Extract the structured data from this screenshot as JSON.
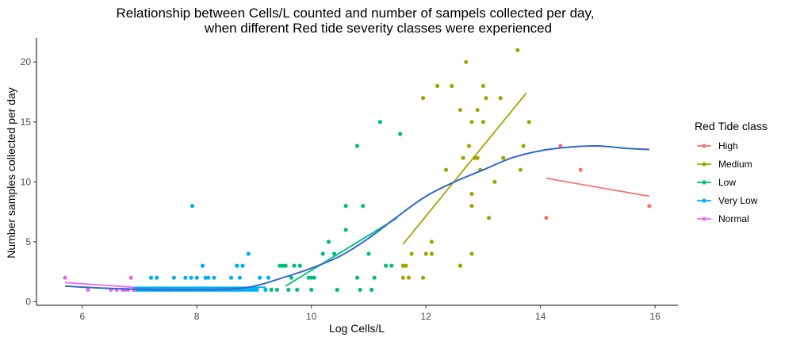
{
  "chart_data": {
    "type": "scatter",
    "title_line1": "Relationship between Cells/L counted and number of sampels collected per day,",
    "title_line2": "when different Red tide severity classes were experienced",
    "xlabel": "Log Cells/L",
    "ylabel": "Number samples collected per day",
    "xlim": [
      5.2,
      16.4
    ],
    "ylim": [
      -0.3,
      22
    ],
    "x_ticks": [
      6,
      8,
      10,
      12,
      14,
      16
    ],
    "y_ticks": [
      0,
      5,
      10,
      15,
      20
    ],
    "grid": false,
    "legend": {
      "title": "Red Tide class",
      "placement": "right"
    },
    "series": [
      {
        "name": "High",
        "color": "#F8766D",
        "points": [
          [
            14.1,
            7
          ],
          [
            14.35,
            13
          ],
          [
            14.7,
            11
          ],
          [
            15.9,
            8
          ]
        ],
        "fit": [
          [
            14.1,
            10.3
          ],
          [
            15.9,
            8.8
          ]
        ]
      },
      {
        "name": "Medium",
        "color": "#A3A500",
        "points": [
          [
            11.6,
            2
          ],
          [
            11.6,
            3
          ],
          [
            11.65,
            3
          ],
          [
            11.7,
            2
          ],
          [
            11.75,
            4
          ],
          [
            11.95,
            2
          ],
          [
            11.95,
            17
          ],
          [
            12.0,
            4
          ],
          [
            12.1,
            4
          ],
          [
            12.1,
            5
          ],
          [
            12.2,
            18
          ],
          [
            12.35,
            11
          ],
          [
            12.45,
            18
          ],
          [
            12.6,
            3
          ],
          [
            12.6,
            16
          ],
          [
            12.65,
            12
          ],
          [
            12.7,
            20
          ],
          [
            12.75,
            13
          ],
          [
            12.8,
            4
          ],
          [
            12.8,
            8
          ],
          [
            12.8,
            15
          ],
          [
            12.8,
            9
          ],
          [
            12.85,
            12
          ],
          [
            12.9,
            12
          ],
          [
            12.9,
            16
          ],
          [
            12.95,
            11
          ],
          [
            13.0,
            18
          ],
          [
            13.0,
            15
          ],
          [
            13.05,
            17
          ],
          [
            13.1,
            7
          ],
          [
            13.2,
            10
          ],
          [
            13.3,
            17
          ],
          [
            13.35,
            12
          ],
          [
            13.6,
            21
          ],
          [
            13.65,
            11
          ],
          [
            13.7,
            13
          ],
          [
            13.8,
            15
          ]
        ],
        "fit": [
          [
            11.6,
            4.8
          ],
          [
            13.75,
            17.4
          ]
        ]
      },
      {
        "name": "Low",
        "color": "#00BF7D",
        "points": [
          [
            9.3,
            1
          ],
          [
            9.4,
            1
          ],
          [
            9.45,
            3
          ],
          [
            9.5,
            3
          ],
          [
            9.55,
            3
          ],
          [
            9.6,
            1
          ],
          [
            9.65,
            2
          ],
          [
            9.7,
            3
          ],
          [
            9.75,
            1
          ],
          [
            9.8,
            3
          ],
          [
            9.95,
            2
          ],
          [
            10.0,
            1
          ],
          [
            10.0,
            2
          ],
          [
            10.05,
            2
          ],
          [
            10.2,
            4
          ],
          [
            10.3,
            5
          ],
          [
            10.4,
            4
          ],
          [
            10.45,
            1
          ],
          [
            10.6,
            8
          ],
          [
            10.6,
            6
          ],
          [
            10.8,
            2
          ],
          [
            10.8,
            13
          ],
          [
            10.85,
            1
          ],
          [
            10.9,
            8
          ],
          [
            11.0,
            4
          ],
          [
            11.05,
            1
          ],
          [
            11.1,
            2
          ],
          [
            11.2,
            15
          ],
          [
            11.3,
            3
          ],
          [
            11.4,
            3
          ],
          [
            11.55,
            14
          ]
        ],
        "fit": [
          [
            9.55,
            1.3
          ],
          [
            11.5,
            7.0
          ]
        ]
      },
      {
        "name": "Very Low",
        "color": "#00B0F6",
        "points": [
          [
            6.9,
            1
          ],
          [
            6.95,
            1
          ],
          [
            7.0,
            1
          ],
          [
            7.05,
            1
          ],
          [
            7.1,
            1
          ],
          [
            7.15,
            1
          ],
          [
            7.2,
            1
          ],
          [
            7.2,
            2
          ],
          [
            7.25,
            1
          ],
          [
            7.3,
            1
          ],
          [
            7.3,
            2
          ],
          [
            7.35,
            1
          ],
          [
            7.4,
            1
          ],
          [
            7.45,
            1
          ],
          [
            7.5,
            1
          ],
          [
            7.55,
            1
          ],
          [
            7.6,
            1
          ],
          [
            7.6,
            2
          ],
          [
            7.65,
            1
          ],
          [
            7.7,
            1
          ],
          [
            7.75,
            1
          ],
          [
            7.8,
            1
          ],
          [
            7.8,
            2
          ],
          [
            7.85,
            1
          ],
          [
            7.9,
            1
          ],
          [
            7.9,
            2
          ],
          [
            7.92,
            8
          ],
          [
            7.95,
            1
          ],
          [
            8.0,
            1
          ],
          [
            8.0,
            2
          ],
          [
            8.05,
            1
          ],
          [
            8.1,
            1
          ],
          [
            8.1,
            3
          ],
          [
            8.15,
            1
          ],
          [
            8.15,
            2
          ],
          [
            8.2,
            1
          ],
          [
            8.2,
            2
          ],
          [
            8.25,
            1
          ],
          [
            8.3,
            1
          ],
          [
            8.3,
            2
          ],
          [
            8.35,
            1
          ],
          [
            8.4,
            1
          ],
          [
            8.45,
            1
          ],
          [
            8.5,
            1
          ],
          [
            8.55,
            1
          ],
          [
            8.6,
            1
          ],
          [
            8.6,
            2
          ],
          [
            8.65,
            1
          ],
          [
            8.7,
            1
          ],
          [
            8.7,
            3
          ],
          [
            8.75,
            1
          ],
          [
            8.75,
            2
          ],
          [
            8.8,
            1
          ],
          [
            8.8,
            3
          ],
          [
            8.85,
            1
          ],
          [
            8.9,
            1
          ],
          [
            8.9,
            4
          ],
          [
            8.95,
            1
          ],
          [
            9.0,
            1
          ],
          [
            9.05,
            1
          ],
          [
            9.1,
            2
          ],
          [
            9.2,
            1
          ],
          [
            9.25,
            2
          ]
        ],
        "fit": [
          [
            6.9,
            1.2
          ],
          [
            9.2,
            1.2
          ]
        ]
      },
      {
        "name": "Normal",
        "color": "#E76BF3",
        "points": [
          [
            5.7,
            2
          ],
          [
            6.1,
            1
          ],
          [
            6.5,
            1
          ],
          [
            6.6,
            1
          ],
          [
            6.7,
            1
          ],
          [
            6.75,
            1
          ],
          [
            6.8,
            1
          ],
          [
            6.85,
            2
          ],
          [
            6.9,
            1
          ]
        ],
        "fit": [
          [
            5.7,
            1.6
          ],
          [
            6.9,
            1.2
          ]
        ]
      }
    ],
    "overall_smooth": {
      "color": "#3366CC",
      "points": [
        [
          5.7,
          1.3
        ],
        [
          6.5,
          1.1
        ],
        [
          7.5,
          1.0
        ],
        [
          8.5,
          1.05
        ],
        [
          9.0,
          1.3
        ],
        [
          9.5,
          2.0
        ],
        [
          10.0,
          2.8
        ],
        [
          10.5,
          3.8
        ],
        [
          11.0,
          5.3
        ],
        [
          11.5,
          7.1
        ],
        [
          12.0,
          8.8
        ],
        [
          12.5,
          10.0
        ],
        [
          13.0,
          11.0
        ],
        [
          13.5,
          12.0
        ],
        [
          14.0,
          12.6
        ],
        [
          14.5,
          12.9
        ],
        [
          15.0,
          13.0
        ],
        [
          15.5,
          12.8
        ],
        [
          15.9,
          12.7
        ]
      ]
    }
  }
}
